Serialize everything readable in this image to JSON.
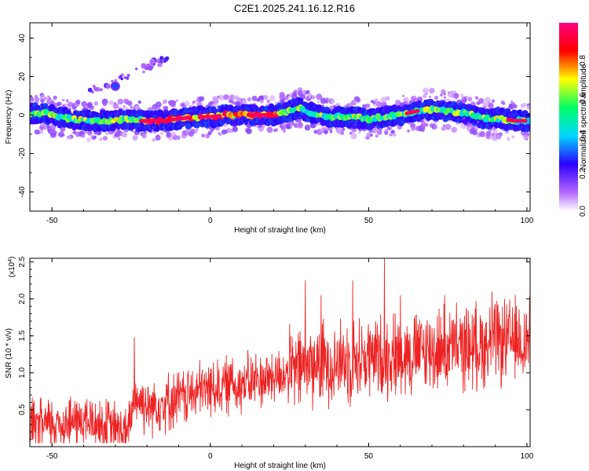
{
  "title": "C2E1.2025.241.16.12.R16",
  "chart_data": [
    {
      "type": "heatmap",
      "xlabel": "Height of straight line (km)",
      "ylabel": "Frequency (Hz)",
      "xlim": [
        -57,
        101
      ],
      "ylim": [
        -50,
        48
      ],
      "xticks": [
        -50,
        0,
        50,
        100
      ],
      "yticks": [
        -40,
        -20,
        0,
        20,
        40
      ],
      "colorbar": {
        "label": "Normalized spectral amplitude",
        "range": [
          0,
          1
        ],
        "ticks": [
          "0.0",
          "0.2",
          "0.4",
          "0.6",
          "0.8"
        ],
        "tick_values": [
          0,
          0.2,
          0.4,
          0.6,
          0.8
        ],
        "colors": [
          "#ffffff",
          "#b466ff",
          "#2b00ff",
          "#00d7ff",
          "#00ff66",
          "#ffff00",
          "#ff0000",
          "#ff007f"
        ]
      },
      "ridge_center_hz": [
        [
          -57,
          1
        ],
        [
          -52,
          1
        ],
        [
          -48,
          -1
        ],
        [
          -44,
          -2
        ],
        [
          -38,
          -3
        ],
        [
          -32,
          -3
        ],
        [
          -27,
          -2
        ],
        [
          -22,
          -3
        ],
        [
          -15,
          -3
        ],
        [
          -10,
          -2
        ],
        [
          -5,
          -1
        ],
        [
          0,
          -1
        ],
        [
          5,
          0
        ],
        [
          10,
          0
        ],
        [
          15,
          0
        ],
        [
          20,
          0
        ],
        [
          25,
          2
        ],
        [
          28,
          4
        ],
        [
          32,
          1
        ],
        [
          36,
          -1
        ],
        [
          40,
          -1
        ],
        [
          45,
          -1
        ],
        [
          50,
          -2
        ],
        [
          55,
          -1
        ],
        [
          60,
          0
        ],
        [
          65,
          2
        ],
        [
          70,
          3
        ],
        [
          75,
          2
        ],
        [
          80,
          1
        ],
        [
          85,
          -1
        ],
        [
          88,
          -2
        ],
        [
          92,
          -2
        ],
        [
          96,
          -3
        ],
        [
          101,
          -3
        ]
      ],
      "secondary_feature": {
        "x_from": -38,
        "x_to": -13,
        "y_from": 12,
        "y_to": 30
      }
    },
    {
      "type": "line",
      "xlabel": "Height of straight line (km)",
      "ylabel": "SNR (10 * v/v)",
      "multiplier": "(x10",
      "multiplier_exp": "4",
      "xlim": [
        -57,
        101
      ],
      "ylim": [
        0,
        2.55
      ],
      "xticks": [
        -50,
        0,
        50,
        100
      ],
      "yticks": [
        "0.5",
        "1.0",
        "1.5",
        "2.0",
        "2.5"
      ],
      "ytick_values": [
        0.5,
        1.0,
        1.5,
        2.0,
        2.5
      ],
      "color": "#ee2222",
      "trend": [
        [
          -57,
          0.25
        ],
        [
          -50,
          0.3
        ],
        [
          -40,
          0.35
        ],
        [
          -30,
          0.25
        ],
        [
          -26,
          0.15
        ],
        [
          -24,
          0.7
        ],
        [
          -20,
          0.55
        ],
        [
          -10,
          0.65
        ],
        [
          0,
          0.8
        ],
        [
          10,
          0.85
        ],
        [
          20,
          0.95
        ],
        [
          25,
          1.0
        ],
        [
          30,
          1.1
        ],
        [
          40,
          1.15
        ],
        [
          50,
          1.2
        ],
        [
          60,
          1.25
        ],
        [
          70,
          1.3
        ],
        [
          80,
          1.35
        ],
        [
          90,
          1.4
        ],
        [
          101,
          1.45
        ]
      ],
      "spikes": [
        [
          -24,
          1.48
        ],
        [
          7,
          1.2
        ],
        [
          30,
          2.25
        ],
        [
          35,
          2.05
        ],
        [
          45,
          2.25
        ],
        [
          55,
          2.55
        ],
        [
          60,
          2.05
        ],
        [
          74,
          2.05
        ],
        [
          89,
          2.1
        ],
        [
          98,
          1.65
        ]
      ]
    }
  ]
}
